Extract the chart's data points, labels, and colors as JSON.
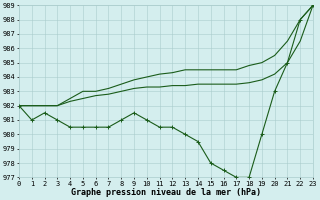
{
  "title": "Graphe pression niveau de la mer (hPa)",
  "x": [
    0,
    1,
    2,
    3,
    4,
    5,
    6,
    7,
    8,
    9,
    10,
    11,
    12,
    13,
    14,
    15,
    16,
    17,
    18,
    19,
    20,
    21,
    22,
    23
  ],
  "line_top": [
    982,
    982,
    982,
    982,
    982.5,
    983,
    983,
    983.2,
    983.5,
    983.8,
    984,
    984.2,
    984.3,
    984.5,
    984.5,
    984.5,
    984.5,
    984.5,
    984.8,
    985,
    985.5,
    986.5,
    988,
    989
  ],
  "line_mid": [
    982,
    982,
    982,
    982,
    982.3,
    982.5,
    982.7,
    982.8,
    983,
    983.2,
    983.3,
    983.3,
    983.4,
    983.4,
    983.5,
    983.5,
    983.5,
    983.5,
    983.6,
    983.8,
    984.2,
    985,
    986.5,
    989
  ],
  "line_bot": [
    982,
    981,
    981.5,
    981,
    980.5,
    980.5,
    980.5,
    980.5,
    981,
    981.5,
    981,
    980.5,
    980.5,
    980,
    979.5,
    978,
    977.5,
    977,
    977,
    980,
    983,
    985,
    988,
    989
  ],
  "bg_color": "#d4eeee",
  "grid_color": "#aacccc",
  "line_color_dark": "#1a5c1a",
  "ylim": [
    977,
    989
  ],
  "yticks": [
    977,
    978,
    979,
    980,
    981,
    982,
    983,
    984,
    985,
    986,
    987,
    988,
    989
  ],
  "xticks": [
    0,
    1,
    2,
    3,
    4,
    5,
    6,
    7,
    8,
    9,
    10,
    11,
    12,
    13,
    14,
    15,
    16,
    17,
    18,
    19,
    20,
    21,
    22,
    23
  ],
  "tick_fontsize": 5.0,
  "xlabel_fontsize": 6.0,
  "marker": "+",
  "markersize": 3.5,
  "linewidth": 0.8
}
